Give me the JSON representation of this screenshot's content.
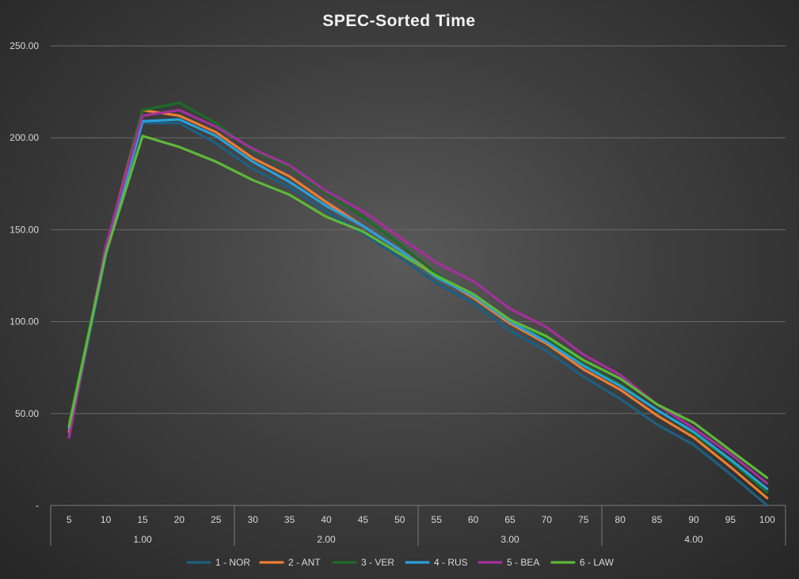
{
  "chart_data": {
    "type": "line",
    "title": "SPEC-Sorted Time",
    "x": [
      5,
      10,
      15,
      20,
      25,
      30,
      35,
      40,
      45,
      50,
      55,
      60,
      65,
      70,
      75,
      80,
      85,
      90,
      95,
      100
    ],
    "x_groups": [
      {
        "label": "1.00",
        "from": 5,
        "to": 25
      },
      {
        "label": "2.00",
        "from": 30,
        "to": 50
      },
      {
        "label": "3.00",
        "from": 55,
        "to": 75
      },
      {
        "label": "4.00",
        "from": 80,
        "to": 100
      }
    ],
    "y_ticks": [
      "-",
      "50.00",
      "100.00",
      "150.00",
      "200.00",
      "250.00"
    ],
    "ylim": [
      0,
      250
    ],
    "grid": true,
    "legend_position": "bottom",
    "series": [
      {
        "name": "1 - NOR",
        "color": "#1f5f7f",
        "values": [
          38,
          136,
          208,
          208,
          197,
          183,
          173,
          160,
          148,
          135,
          121,
          110,
          95,
          84,
          70,
          58,
          44,
          33,
          17,
          0
        ]
      },
      {
        "name": "2 - ANT",
        "color": "#ed7d31",
        "values": [
          40,
          140,
          215,
          212,
          203,
          189,
          179,
          165,
          152,
          139,
          125,
          113,
          99,
          88,
          74,
          63,
          49,
          37,
          21,
          4
        ]
      },
      {
        "name": "3 - VER",
        "color": "#1e6b27",
        "values": [
          45,
          138,
          215,
          219,
          208,
          193,
          184,
          170,
          157,
          142,
          126,
          114,
          101,
          91,
          77,
          66,
          52,
          39,
          24,
          7
        ]
      },
      {
        "name": "4 - RUS",
        "color": "#29a0d8",
        "values": [
          42,
          137,
          209,
          210,
          201,
          187,
          176,
          163,
          152,
          139,
          124,
          114,
          100,
          89,
          76,
          65,
          52,
          40,
          25,
          9
        ]
      },
      {
        "name": "5 - BEA",
        "color": "#a3309c",
        "values": [
          37,
          141,
          212,
          215,
          206,
          194,
          185,
          171,
          160,
          146,
          132,
          122,
          107,
          97,
          82,
          71,
          55,
          42,
          28,
          12
        ]
      },
      {
        "name": "6 - LAW",
        "color": "#5eb83a",
        "values": [
          43,
          137,
          201,
          195,
          187,
          177,
          169,
          157,
          149,
          137,
          125,
          115,
          101,
          92,
          79,
          69,
          55,
          45,
          30,
          15
        ]
      }
    ]
  }
}
